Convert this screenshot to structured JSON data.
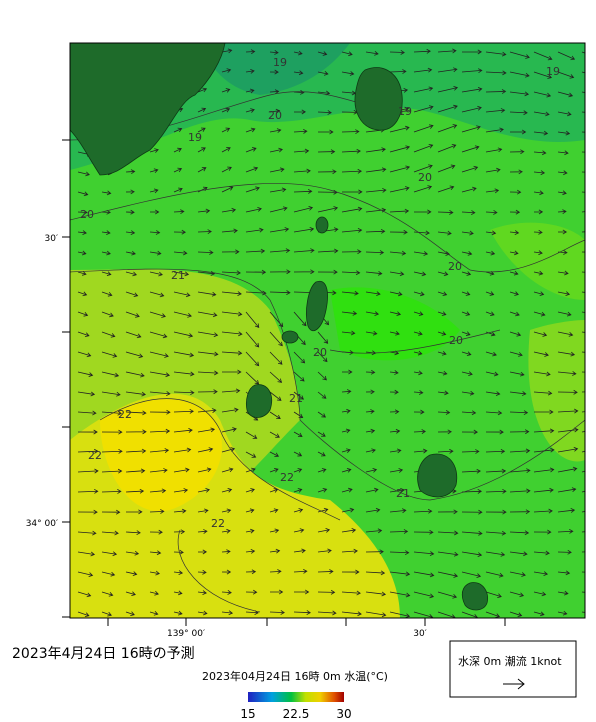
{
  "map": {
    "contour_labels": [
      "19",
      "19",
      "19",
      "19",
      "20",
      "20",
      "20",
      "20",
      "20",
      "20",
      "21",
      "21",
      "21",
      "22",
      "22",
      "22",
      "22"
    ],
    "lat_labels": [
      "30′",
      "34° 00′"
    ],
    "lon_labels": [
      "139° 00′",
      "30′"
    ],
    "title": "2023年4月24日  16時の予測",
    "subtitle": "2023年04月24日 16時 0m 水温(°C)",
    "colorbar": {
      "range": [
        15,
        30
      ],
      "ticks": [
        15,
        22.5,
        30
      ]
    },
    "legend": "水深 0m 潮流 1knot"
  }
}
